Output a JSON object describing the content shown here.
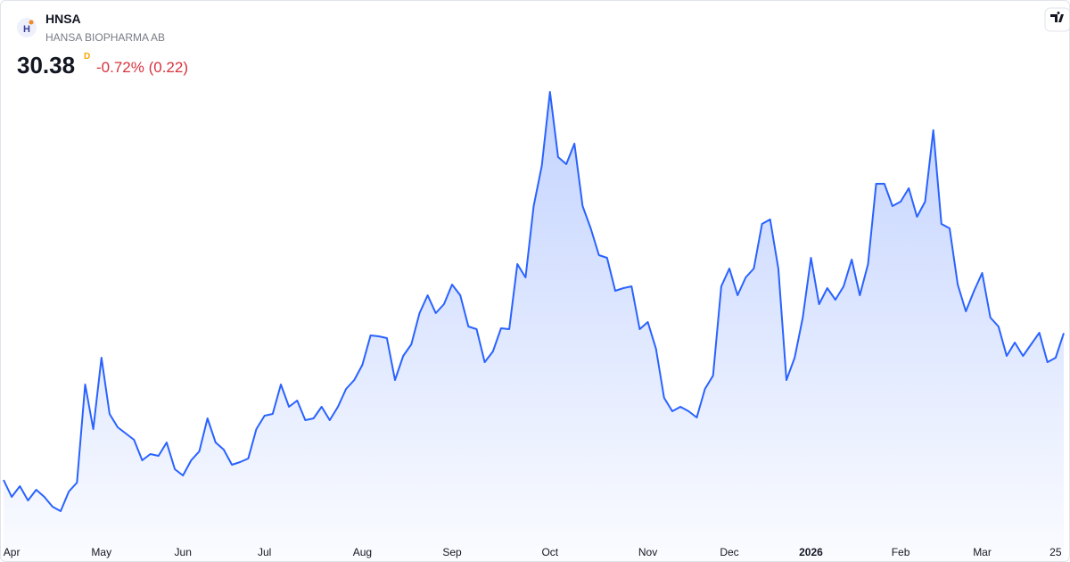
{
  "chart_data": {
    "type": "area",
    "symbol": "HNSA",
    "name": "HANSA BIOPHARMA AB",
    "price": "30.38",
    "interval": "D",
    "change": "-0.72% (0.22)",
    "color": "#2962ff",
    "ylim": [
      19,
      45
    ],
    "categories": [
      null,
      "Apr",
      null,
      null,
      null,
      null,
      null,
      null,
      null,
      null,
      null,
      null,
      "May",
      null,
      null,
      null,
      null,
      null,
      null,
      null,
      null,
      null,
      "Jun",
      null,
      null,
      null,
      null,
      null,
      null,
      null,
      null,
      null,
      "Jul",
      null,
      null,
      null,
      null,
      null,
      null,
      null,
      null,
      null,
      null,
      null,
      "Aug",
      null,
      null,
      null,
      null,
      null,
      null,
      null,
      null,
      null,
      null,
      "Sep",
      null,
      null,
      null,
      null,
      null,
      null,
      null,
      null,
      null,
      null,
      null,
      "Oct",
      null,
      null,
      null,
      null,
      null,
      null,
      null,
      null,
      null,
      null,
      null,
      "Nov",
      null,
      null,
      null,
      null,
      null,
      null,
      null,
      null,
      null,
      "Dec",
      null,
      null,
      null,
      null,
      null,
      null,
      null,
      null,
      null,
      "2026",
      null,
      null,
      null,
      null,
      null,
      null,
      null,
      null,
      null,
      null,
      "Feb",
      null,
      null,
      null,
      null,
      null,
      null,
      null,
      null,
      null,
      "Mar",
      null,
      null,
      null,
      null,
      null,
      null,
      null,
      null,
      "25",
      null
    ],
    "values": [
      22.15,
      21.2,
      21.8,
      21,
      21.6,
      21.2,
      20.65,
      20.4,
      21.5,
      22,
      27.5,
      25,
      29,
      25.85,
      25.1,
      24.75,
      24.4,
      23.25,
      23.6,
      23.5,
      24.25,
      22.75,
      22.4,
      23.25,
      23.75,
      25.6,
      24.25,
      23.85,
      23,
      23.15,
      23.35,
      25,
      25.75,
      25.85,
      27.5,
      26.25,
      26.6,
      25.5,
      25.6,
      26.25,
      25.5,
      26.25,
      27.25,
      27.75,
      28.6,
      30.25,
      30.2,
      30.1,
      27.75,
      29.1,
      29.75,
      31.5,
      32.5,
      31.5,
      32,
      33.1,
      32.5,
      30.75,
      30.6,
      28.75,
      29.35,
      30.65,
      30.6,
      34.25,
      33.5,
      37.5,
      39.75,
      43.9,
      40.25,
      39.85,
      41,
      37.5,
      36.25,
      34.75,
      34.6,
      32.75,
      32.9,
      33,
      30.6,
      31,
      29.5,
      26.75,
      26,
      26.25,
      26,
      25.65,
      27.25,
      28,
      33,
      34,
      32.5,
      33.5,
      34,
      36.5,
      36.75,
      34,
      27.75,
      29,
      31.25,
      34.6,
      32,
      32.9,
      32.25,
      33,
      34.5,
      32.5,
      34.25,
      38.75,
      38.75,
      37.5,
      37.75,
      38.5,
      36.9,
      37.75,
      41.75,
      36.5,
      36.25,
      33.1,
      31.6,
      32.75,
      33.75,
      31.25,
      30.75,
      29.1,
      29.85,
      29.1,
      29.75,
      30.4,
      28.75,
      29,
      30.38
    ]
  }
}
